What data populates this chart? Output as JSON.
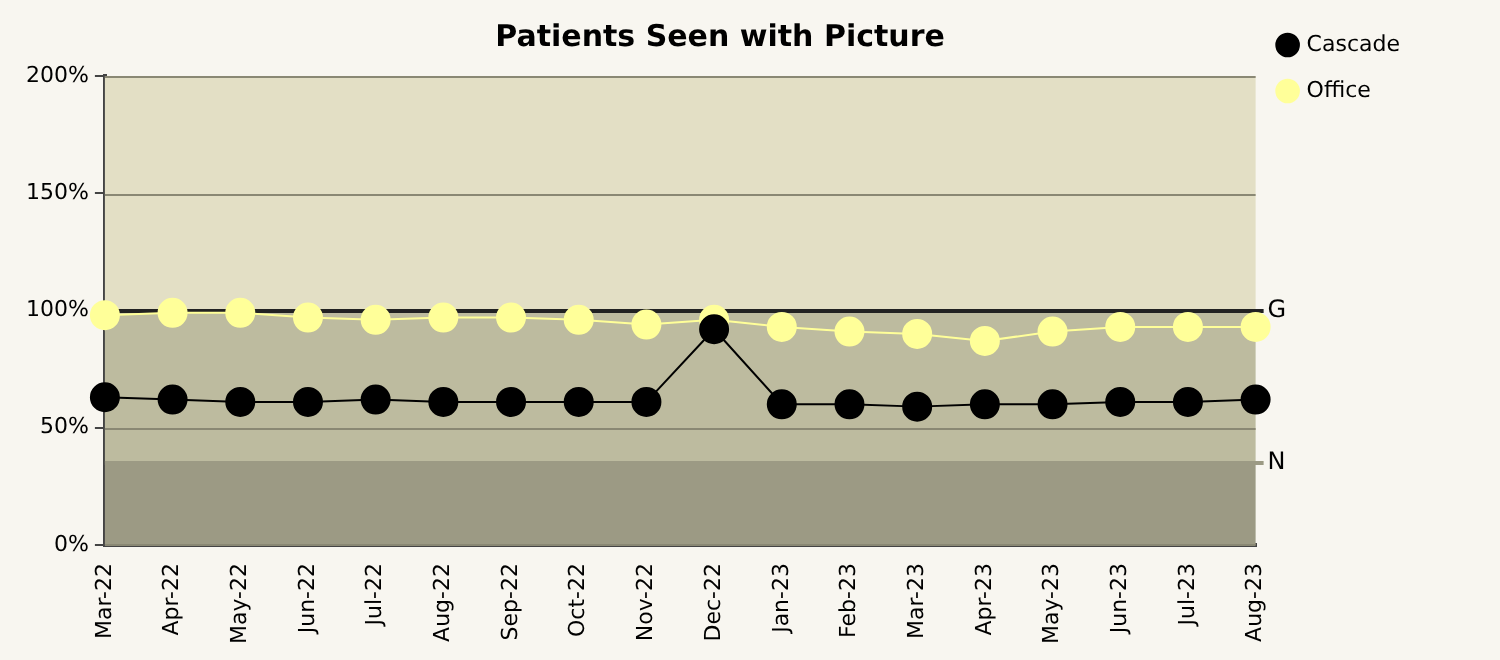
{
  "chart_data": {
    "type": "line",
    "title": "Patients Seen with Picture",
    "categories": [
      "Mar-22",
      "Apr-22",
      "May-22",
      "Jun-22",
      "Jul-22",
      "Aug-22",
      "Sep-22",
      "Oct-22",
      "Nov-22",
      "Dec-22",
      "Jan-23",
      "Feb-23",
      "Mar-23",
      "Apr-23",
      "May-23",
      "Jun-23",
      "Jul-23",
      "Aug-23"
    ],
    "series": [
      {
        "name": "Office",
        "color": "#ffff99",
        "values": [
          98,
          99,
          99,
          97,
          96,
          97,
          97,
          96,
          94,
          96,
          93,
          91,
          90,
          87,
          91,
          93,
          93,
          93
        ]
      },
      {
        "name": "Cascade",
        "color": "#000000",
        "values": [
          63,
          62,
          61,
          61,
          62,
          61,
          61,
          61,
          61,
          92,
          60,
          60,
          59,
          60,
          60,
          61,
          61,
          62
        ]
      }
    ],
    "ylim": [
      0,
      200
    ],
    "yticks": [
      {
        "value": 0,
        "label": "0%"
      },
      {
        "value": 50,
        "label": "50%"
      },
      {
        "value": 100,
        "label": "100%"
      },
      {
        "value": 150,
        "label": "150%"
      },
      {
        "value": 200,
        "label": "200%"
      }
    ],
    "bands": [
      {
        "axis": "y",
        "from": 0,
        "to": 35,
        "color": "#9c9a84"
      },
      {
        "axis": "y",
        "from": 35,
        "to": 100,
        "color": "#bdbb9f"
      },
      {
        "axis": "y",
        "from": 100,
        "to": 200,
        "color": "#e3dfc5"
      }
    ],
    "ref_lines": [
      {
        "axis": "y",
        "value": 100,
        "label": "G",
        "color": "#222222"
      },
      {
        "axis": "y",
        "value": 35,
        "label": "N",
        "color": "#9c9a84"
      }
    ],
    "grid": "y",
    "legend": "right",
    "marker": "circle",
    "line_style": "solid"
  }
}
